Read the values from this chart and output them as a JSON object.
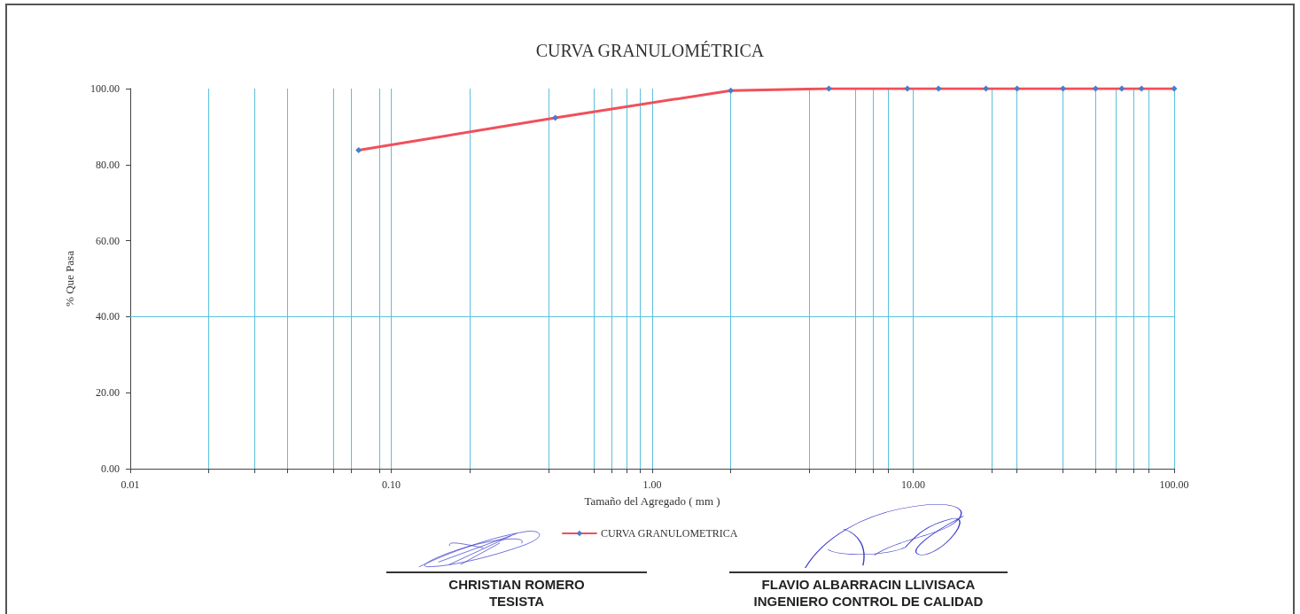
{
  "chart_data": {
    "type": "line",
    "title": "CURVA GRANULOMÉTRICA",
    "xlabel": "Tamaño del Agregado ( mm )",
    "ylabel": "% Que Pasa",
    "x": [
      0.075,
      0.425,
      2.0,
      4.75,
      9.5,
      12.5,
      19.0,
      25.0,
      37.5,
      50.0,
      63.0,
      75.0,
      100.0
    ],
    "series": [
      {
        "name": "CURVA GRANULOMETRICA",
        "color": "#f0505a",
        "values": [
          83.8,
          92.3,
          99.5,
          100,
          100,
          100,
          100,
          100,
          100,
          100,
          100,
          100,
          100
        ]
      }
    ],
    "log": "x",
    "xlim": [
      0.01,
      100
    ],
    "ylim": [
      0,
      100
    ],
    "xticks": [
      {
        "value": 0.01,
        "label": "0.01"
      },
      {
        "value": 0.02,
        "label": null
      },
      {
        "value": 0.03,
        "label": null
      },
      {
        "value": 0.04,
        "label": null
      },
      {
        "value": 0.06,
        "label": null
      },
      {
        "value": 0.07,
        "label": null
      },
      {
        "value": 0.09,
        "label": null
      },
      {
        "value": 0.1,
        "label": "0.10"
      },
      {
        "value": 0.2,
        "label": null
      },
      {
        "value": 0.4,
        "label": null
      },
      {
        "value": 0.6,
        "label": null
      },
      {
        "value": 0.7,
        "label": null
      },
      {
        "value": 0.8,
        "label": null
      },
      {
        "value": 0.9,
        "label": null
      },
      {
        "value": 1,
        "label": "1.00"
      },
      {
        "value": 2,
        "label": null
      },
      {
        "value": 4,
        "label": null
      },
      {
        "value": 6,
        "label": null
      },
      {
        "value": 7,
        "label": null
      },
      {
        "value": 8,
        "label": null
      },
      {
        "value": 10,
        "label": "10.00"
      },
      {
        "value": 20,
        "label": null
      },
      {
        "value": 25,
        "label": null
      },
      {
        "value": 37.5,
        "label": null
      },
      {
        "value": 50,
        "label": null
      },
      {
        "value": 60,
        "label": null
      },
      {
        "value": 70,
        "label": null
      },
      {
        "value": 80,
        "label": null
      },
      {
        "value": 100,
        "label": "100.00"
      }
    ],
    "yticks": [
      {
        "value": 0,
        "label": "0.00"
      },
      {
        "value": 20,
        "label": "20.00"
      },
      {
        "value": 40,
        "label": "40.00"
      },
      {
        "value": 60,
        "label": "60.00"
      },
      {
        "value": 80,
        "label": "80.00"
      },
      {
        "value": 100,
        "label": "100.00"
      }
    ],
    "grid": "x",
    "ref_lines": [
      {
        "axis": "y",
        "value": 40,
        "label": null,
        "color": "#5bc0de"
      }
    ],
    "legend": "bottom",
    "marker": "diamond",
    "line_style": "solid",
    "annotations": [
      "CHRISTIAN ROMERO",
      "TESISTA",
      "FLAVIO ALBARRACIN LLIVISACA",
      "INGENIERO CONTROL DE CALIDAD"
    ]
  }
}
